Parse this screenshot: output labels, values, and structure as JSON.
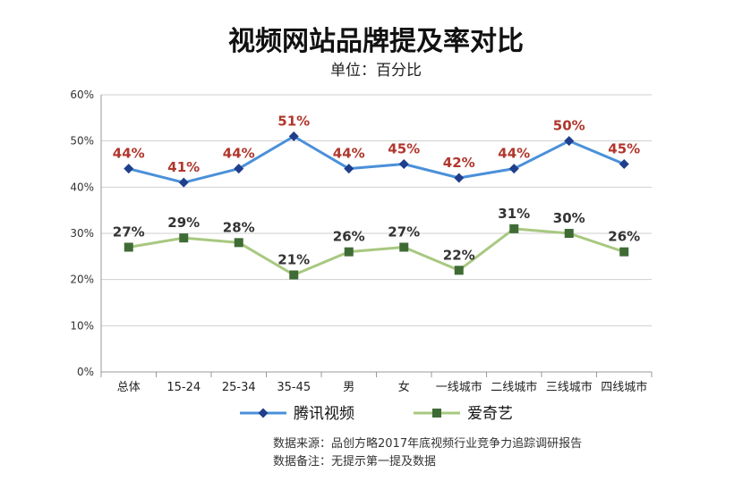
{
  "chart_data": {
    "type": "line",
    "title": "视频网站品牌提及率对比",
    "subtitle": "单位：百分比",
    "xlabel": "",
    "ylabel": "",
    "categories": [
      "总体",
      "15-24",
      "25-34",
      "35-45",
      "男",
      "女",
      "一线城市",
      "二线城市",
      "三线城市",
      "四线城市"
    ],
    "y_ticks": [
      "0%",
      "10%",
      "20%",
      "30%",
      "40%",
      "50%",
      "60%"
    ],
    "ylim": [
      0,
      60
    ],
    "grid": true,
    "legend_position": "bottom",
    "series": [
      {
        "name": "腾讯视频",
        "values": [
          44,
          41,
          44,
          51,
          44,
          45,
          42,
          44,
          50,
          45
        ],
        "labels": [
          "44%",
          "41%",
          "44%",
          "51%",
          "44%",
          "45%",
          "42%",
          "44%",
          "50%",
          "45%"
        ],
        "color": "#4a90d9",
        "marker": "diamond",
        "marker_color": "#1f3f8c",
        "label_color": "#b0362c"
      },
      {
        "name": "爱奇艺",
        "values": [
          27,
          29,
          28,
          21,
          26,
          27,
          22,
          31,
          30,
          26
        ],
        "labels": [
          "27%",
          "29%",
          "28%",
          "21%",
          "26%",
          "27%",
          "22%",
          "31%",
          "30%",
          "26%"
        ],
        "color": "#a8c880",
        "marker": "square",
        "marker_color": "#3f6b35",
        "label_color": "#333333"
      }
    ]
  },
  "source_lines": [
    "数据来源：品创方略2017年底视频行业竞争力追踪调研报告",
    "数据备注：无提示第一提及数据"
  ]
}
